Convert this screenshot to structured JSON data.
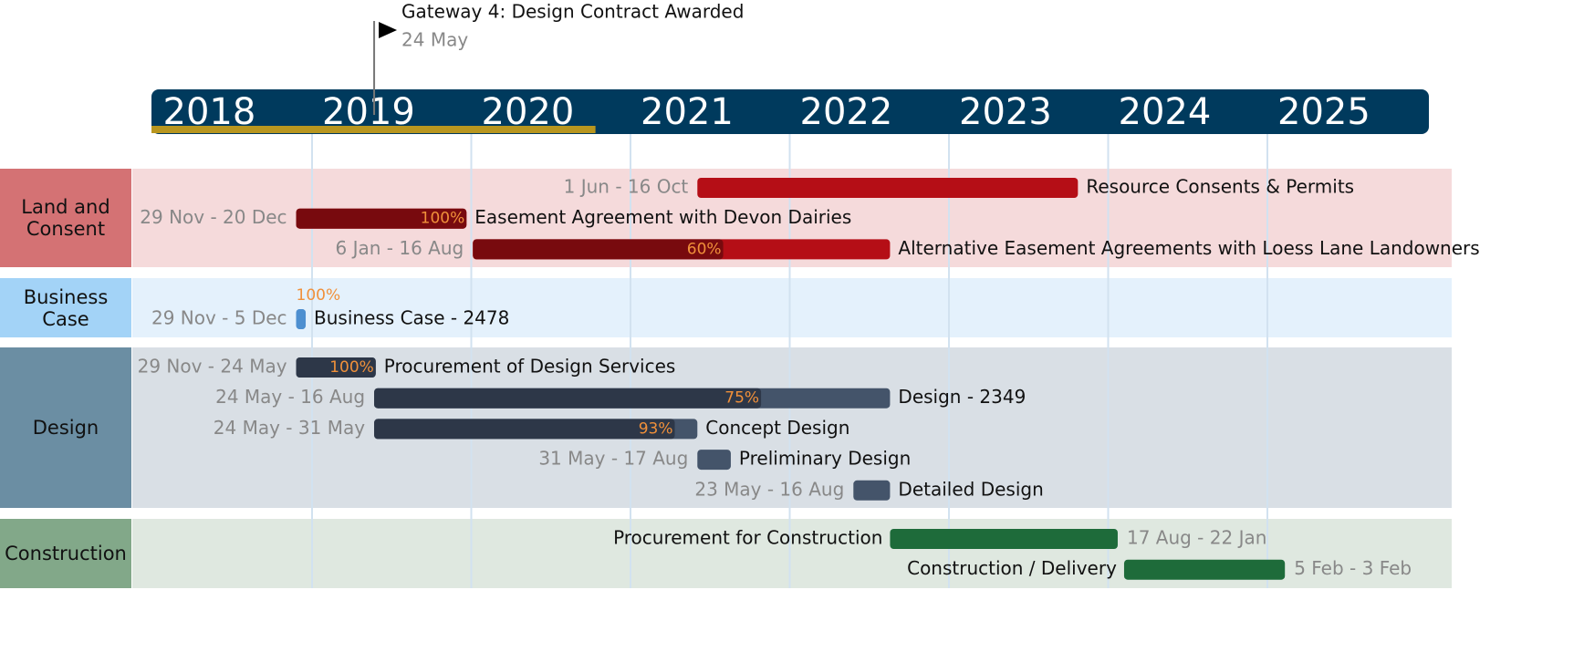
{
  "chart_data": {
    "type": "gantt",
    "xlim": [
      2018,
      2026
    ],
    "xticks": [
      2018,
      2019,
      2020,
      2021,
      2022,
      2023,
      2024,
      2025
    ],
    "header_color": "#003a5d",
    "elapsed_to": 2020.78,
    "elapsed_color": "#b8961f",
    "grid": true,
    "milestone": {
      "name": "Gateway 4: Design Contract Awarded",
      "date_label": "24 May",
      "x": 2019.39
    },
    "groups": [
      {
        "name": "Land and Consent",
        "color": "#d47274",
        "band_color": "#f5dadb",
        "tasks": [
          {
            "name": "Resource Consents & Permits",
            "date_label": "1 Jun - 16 Oct",
            "start": 2021.42,
            "end": 2023.81,
            "color": "#b50e16"
          },
          {
            "name": "Easement Agreement with Devon Dairies",
            "date_label": "29 Nov - 20 Dec",
            "start": 2018.9,
            "end": 2019.97,
            "progress": 100,
            "progress_label": "100%",
            "color": "#b50e16",
            "done_color": "#780a0e"
          },
          {
            "name": "Alternative Easement Agreements with Loess Lane Landowners",
            "date_label": "6 Jan - 16 Aug",
            "start": 2020.01,
            "end": 2022.63,
            "progress": 60,
            "progress_label": "60%",
            "color": "#b50e16",
            "done_color": "#780a0e"
          }
        ]
      },
      {
        "name": "Business Case",
        "color": "#a3d3f7",
        "band_color": "#e4f1fc",
        "tasks": [
          {
            "name": "Business Case - 2478",
            "date_label": "29 Nov - 5 Dec",
            "start": 2018.9,
            "end": 2018.96,
            "progress": 100,
            "progress_label": "100%",
            "color": "#4d8fd0",
            "done_color": "#4d8fd0"
          }
        ]
      },
      {
        "name": "Design",
        "color": "#6b8ea3",
        "band_color": "#d9dfe5",
        "tasks": [
          {
            "name": "Procurement of Design Services",
            "date_label": "29 Nov - 24 May",
            "start": 2018.9,
            "end": 2019.4,
            "progress": 100,
            "progress_label": "100%",
            "color": "#44546a",
            "done_color": "#2d3748"
          },
          {
            "name": "Design - 2349",
            "date_label": "24 May - 16 Aug",
            "start": 2019.39,
            "end": 2022.63,
            "progress": 75,
            "progress_label": "75%",
            "color": "#44546a",
            "done_color": "#2d3748"
          },
          {
            "name": "Concept Design",
            "date_label": "24 May - 31 May",
            "start": 2019.39,
            "end": 2021.42,
            "progress": 93,
            "progress_label": "93%",
            "color": "#44546a",
            "done_color": "#2d3748"
          },
          {
            "name": "Preliminary Design",
            "date_label": "31 May - 17 Aug",
            "start": 2021.42,
            "end": 2021.63,
            "color": "#44546a"
          },
          {
            "name": "Detailed Design",
            "date_label": "23 May - 16 Aug",
            "start": 2022.4,
            "end": 2022.63,
            "color": "#44546a"
          }
        ]
      },
      {
        "name": "Construction",
        "color": "#82a889",
        "band_color": "#dfe8e0",
        "tasks": [
          {
            "name": "Procurement for Construction",
            "date_label": "17 Aug - 22 Jan",
            "start": 2022.63,
            "end": 2024.06,
            "color": "#1e6b3a",
            "name_side": "left"
          },
          {
            "name": "Construction / Delivery",
            "date_label": "5 Feb - 3 Feb",
            "start": 2024.1,
            "end": 2025.11,
            "color": "#1e6b3a",
            "name_side": "left"
          }
        ]
      }
    ]
  }
}
